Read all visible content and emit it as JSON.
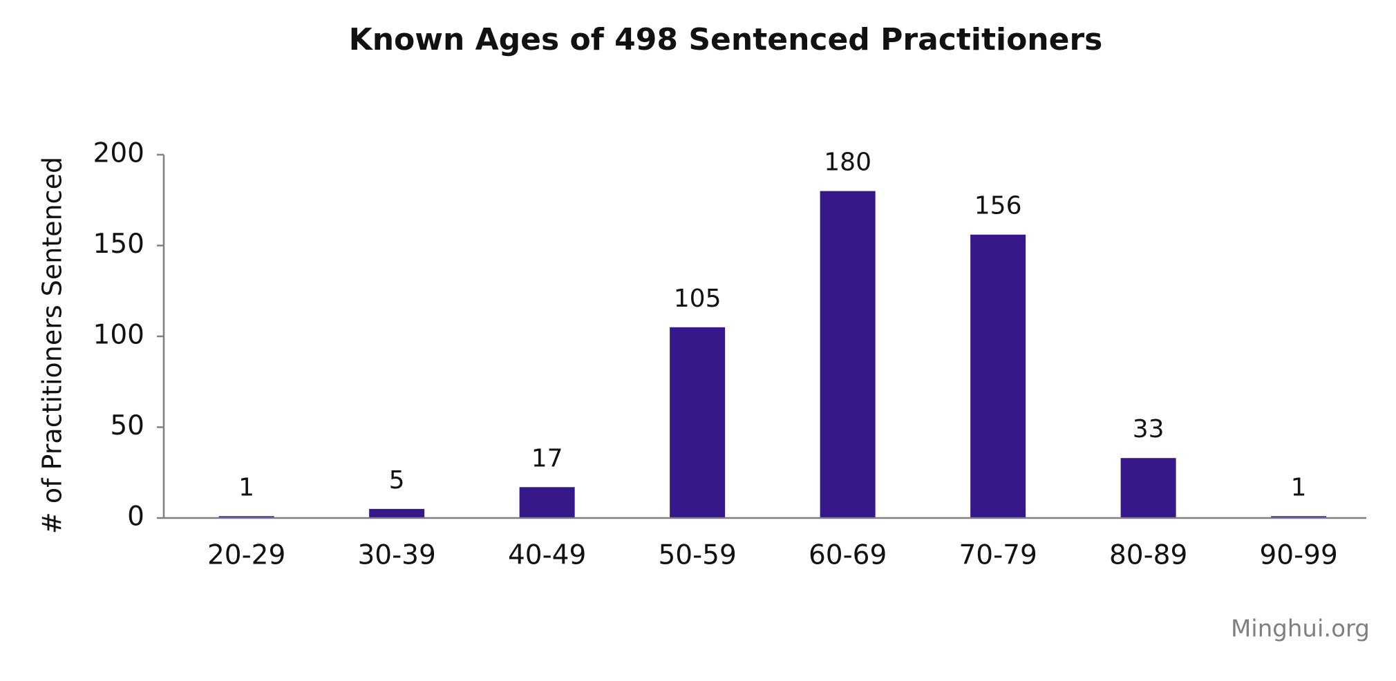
{
  "chart_data": {
    "type": "bar",
    "title": "Known Ages of 498 Sentenced Practitioners",
    "y_label": "# of Practitioners Sentenced",
    "categories": [
      "20-29",
      "30-39",
      "40-49",
      "50-59",
      "60-69",
      "70-79",
      "80-89",
      "90-99"
    ],
    "values": [
      1,
      5,
      17,
      105,
      180,
      156,
      33,
      1
    ],
    "color": "#37188a",
    "ylim": [
      0,
      200
    ],
    "yticks": [
      0,
      50,
      100,
      150,
      200
    ],
    "grid": false,
    "data_labels": true,
    "source": "Minghui.org"
  }
}
